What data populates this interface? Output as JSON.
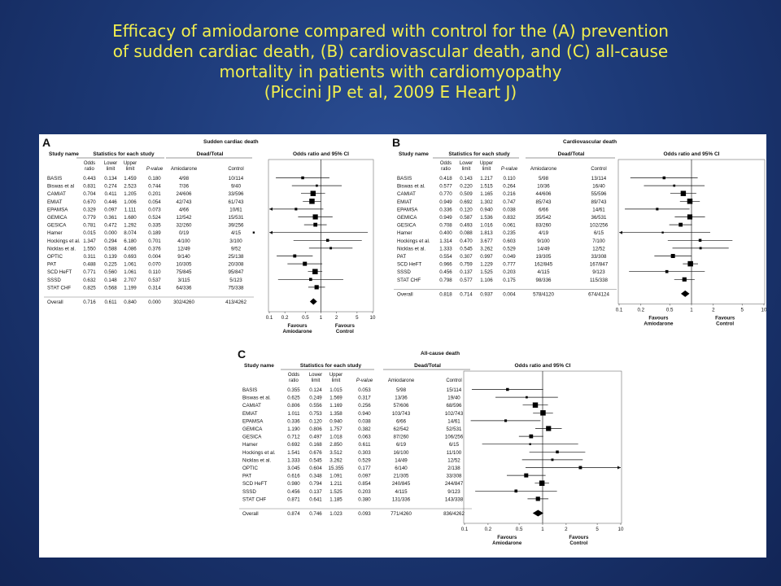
{
  "slide": {
    "title_lines": [
      "Efficacy of amiodarone compared with control for the (A) prevention",
      "of sudden cardiac death, (B) cardiovascular death, and (C) all-cause",
      "mortality in patients with cardiomyopathy",
      "(Piccini JP et al, 2009 E Heart J)"
    ],
    "accent_color": "#f2ef4f",
    "background_color": "#1d3a78"
  },
  "chart_data": [
    {
      "type": "forest",
      "panel_letter": "A",
      "title": "Sudden cardiac death",
      "headers": {
        "study": "Study name",
        "stats": "Statistics for each study",
        "events": "Dead/Total",
        "plot": "Odds ratio and 95% CI"
      },
      "subheaders": {
        "or": [
          "Odds",
          "ratio"
        ],
        "lower": [
          "Lower",
          "limit"
        ],
        "upper": [
          "Upper",
          "limit"
        ],
        "p": "P-value",
        "treat": "Amiodarone",
        "control": "Control"
      },
      "studies": [
        {
          "name": "BASIS",
          "or": "0.443",
          "lower": "0.134",
          "upper": "1.459",
          "p": "0.180",
          "treat": "4/98",
          "control": "10/114"
        },
        {
          "name": "Biswas et al",
          "or": "0.831",
          "lower": "0.274",
          "upper": "2.523",
          "p": "0.744",
          "treat": "7/36",
          "control": "9/40"
        },
        {
          "name": "CAMIAT",
          "or": "0.704",
          "lower": "0.411",
          "upper": "1.205",
          "p": "0.201",
          "treat": "24/606",
          "control": "33/596"
        },
        {
          "name": "EMIAT",
          "or": "0.670",
          "lower": "0.446",
          "upper": "1.006",
          "p": "0.054",
          "treat": "42/743",
          "control": "61/743"
        },
        {
          "name": "EPAMSA",
          "or": "0.329",
          "lower": "0.097",
          "upper": "1.111",
          "p": "0.073",
          "treat": "4/66",
          "control": "10/61"
        },
        {
          "name": "GEMICA",
          "or": "0.779",
          "lower": "0.361",
          "upper": "1.680",
          "p": "0.524",
          "treat": "12/542",
          "control": "15/531"
        },
        {
          "name": "GESICA",
          "or": "0.781",
          "lower": "0.472",
          "upper": "1.292",
          "p": "0.335",
          "treat": "32/260",
          "control": "39/256"
        },
        {
          "name": "Hamer",
          "or": "0.015",
          "lower": "0.000",
          "upper": "8.074",
          "p": "0.189",
          "treat": "0/19",
          "control": "4/15"
        },
        {
          "name": "Hockings et al.",
          "or": "1.347",
          "lower": "0.294",
          "upper": "6.180",
          "p": "0.701",
          "treat": "4/100",
          "control": "3/100"
        },
        {
          "name": "Nicklas et al.",
          "or": "1.550",
          "lower": "0.588",
          "upper": "4.086",
          "p": "0.376",
          "treat": "12/49",
          "control": "9/52"
        },
        {
          "name": "OPTIC",
          "or": "0.311",
          "lower": "0.139",
          "upper": "0.693",
          "p": "0.004",
          "treat": "9/140",
          "control": "25/138"
        },
        {
          "name": "PAT",
          "or": "0.488",
          "lower": "0.225",
          "upper": "1.061",
          "p": "0.070",
          "treat": "10/305",
          "control": "20/308"
        },
        {
          "name": "SCD HeFT",
          "or": "0.771",
          "lower": "0.560",
          "upper": "1.061",
          "p": "0.110",
          "treat": "75/845",
          "control": "95/847"
        },
        {
          "name": "SSSD",
          "or": "0.632",
          "lower": "0.148",
          "upper": "2.707",
          "p": "0.537",
          "treat": "3/115",
          "control": "5/123"
        },
        {
          "name": "STAT CHF",
          "or": "0.825",
          "lower": "0.568",
          "upper": "1.199",
          "p": "0.314",
          "treat": "64/336",
          "control": "75/338"
        }
      ],
      "overall": {
        "name": "Overall",
        "or": "0.716",
        "lower": "0.611",
        "upper": "0.840",
        "p": "0.000",
        "treat": "302/4260",
        "control": "413/4262"
      },
      "x_scale": "log",
      "x_ticks": [
        {
          "value": 0.1,
          "label": "0.1"
        },
        {
          "value": 0.2,
          "label": "0.2"
        },
        {
          "value": 0.5,
          "label": "0.5"
        },
        {
          "value": 1,
          "label": "1"
        },
        {
          "value": 2,
          "label": "2"
        },
        {
          "value": 5,
          "label": "5"
        },
        {
          "value": 10,
          "label": "10"
        }
      ],
      "favours_left": [
        "Favours",
        "Amiodarone"
      ],
      "favours_right": [
        "Favours",
        "Control"
      ]
    },
    {
      "type": "forest",
      "panel_letter": "B",
      "title": "Cardiovascular death",
      "headers": {
        "study": "Study name",
        "stats": "Statistics for each study",
        "events": "Dead/Total",
        "plot": "Odds ratio and 95% CI"
      },
      "subheaders": {
        "or": [
          "Odds",
          "ratio"
        ],
        "lower": [
          "Lower",
          "limit"
        ],
        "upper": [
          "Upper",
          "limit"
        ],
        "p": "P-value",
        "treat": "Amiodarone",
        "control": "Control"
      },
      "studies": [
        {
          "name": "BASIS",
          "or": "0.418",
          "lower": "0.143",
          "upper": "1.217",
          "p": "0.110",
          "treat": "5/98",
          "control": "13/114"
        },
        {
          "name": "Biswas et al.",
          "or": "0.577",
          "lower": "0.220",
          "upper": "1.515",
          "p": "0.264",
          "treat": "10/36",
          "control": "16/40"
        },
        {
          "name": "CAMIAT",
          "or": "0.770",
          "lower": "0.509",
          "upper": "1.165",
          "p": "0.216",
          "treat": "44/606",
          "control": "55/596"
        },
        {
          "name": "EMIAT",
          "or": "0.949",
          "lower": "0.692",
          "upper": "1.302",
          "p": "0.747",
          "treat": "85/743",
          "control": "89/743"
        },
        {
          "name": "EPAMSA",
          "or": "0.336",
          "lower": "0.120",
          "upper": "0.940",
          "p": "0.038",
          "treat": "6/66",
          "control": "14/61"
        },
        {
          "name": "GEMICA",
          "or": "0.949",
          "lower": "0.587",
          "upper": "1.536",
          "p": "0.832",
          "treat": "35/542",
          "control": "36/531"
        },
        {
          "name": "GESICA",
          "or": "0.708",
          "lower": "0.493",
          "upper": "1.016",
          "p": "0.061",
          "treat": "83/260",
          "control": "102/256"
        },
        {
          "name": "Hamer",
          "or": "0.400",
          "lower": "0.088",
          "upper": "1.813",
          "p": "0.235",
          "treat": "4/19",
          "control": "6/15"
        },
        {
          "name": "Hockings et al.",
          "or": "1.314",
          "lower": "0.470",
          "upper": "3.677",
          "p": "0.603",
          "treat": "9/100",
          "control": "7/100"
        },
        {
          "name": "Nicklas et al.",
          "or": "1.333",
          "lower": "0.545",
          "upper": "3.262",
          "p": "0.529",
          "treat": "14/49",
          "control": "12/52"
        },
        {
          "name": "PAT",
          "or": "0.554",
          "lower": "0.307",
          "upper": "0.997",
          "p": "0.049",
          "treat": "19/305",
          "control": "33/308"
        },
        {
          "name": "SCD HeFT",
          "or": "0.966",
          "lower": "0.759",
          "upper": "1.229",
          "p": "0.777",
          "treat": "162/845",
          "control": "167/847"
        },
        {
          "name": "SSSD",
          "or": "0.456",
          "lower": "0.137",
          "upper": "1.525",
          "p": "0.203",
          "treat": "4/115",
          "control": "9/123"
        },
        {
          "name": "STAT CHF",
          "or": "0.798",
          "lower": "0.577",
          "upper": "1.106",
          "p": "0.175",
          "treat": "98/336",
          "control": "115/338"
        }
      ],
      "overall": {
        "name": "Overall",
        "or": "0.818",
        "lower": "0.714",
        "upper": "0.937",
        "p": "0.004",
        "treat": "578/4120",
        "control": "674/4124"
      },
      "x_scale": "log",
      "x_ticks": [
        {
          "value": 0.1,
          "label": "0.1"
        },
        {
          "value": 0.2,
          "label": "0.2"
        },
        {
          "value": 0.5,
          "label": "0.5"
        },
        {
          "value": 1,
          "label": "1"
        },
        {
          "value": 2,
          "label": "2"
        },
        {
          "value": 5,
          "label": "5"
        },
        {
          "value": 10,
          "label": "10"
        }
      ],
      "favours_left": [
        "Favours",
        "Amiodarone"
      ],
      "favours_right": [
        "Favours",
        "Control"
      ]
    },
    {
      "type": "forest",
      "panel_letter": "C",
      "title": "All-cause death",
      "headers": {
        "study": "Study name",
        "stats": "Statistics for each study",
        "events": "Dead/Total",
        "plot": "Odds ratio and 95% CI"
      },
      "subheaders": {
        "or": [
          "Odds",
          "ratio"
        ],
        "lower": [
          "Lower",
          "limit"
        ],
        "upper": [
          "Upper",
          "limit"
        ],
        "p": "P-value",
        "treat": "Amiodarone",
        "control": "Control"
      },
      "studies": [
        {
          "name": "BASIS",
          "or": "0.355",
          "lower": "0.124",
          "upper": "1.015",
          "p": "0.053",
          "treat": "5/98",
          "control": "15/114"
        },
        {
          "name": "Biswas et al.",
          "or": "0.625",
          "lower": "0.249",
          "upper": "1.569",
          "p": "0.317",
          "treat": "13/36",
          "control": "19/40"
        },
        {
          "name": "CAMIAT",
          "or": "0.806",
          "lower": "0.556",
          "upper": "1.169",
          "p": "0.256",
          "treat": "57/606",
          "control": "68/596"
        },
        {
          "name": "EMIAT",
          "or": "1.011",
          "lower": "0.753",
          "upper": "1.358",
          "p": "0.940",
          "treat": "103/743",
          "control": "102/743"
        },
        {
          "name": "EPAMSA",
          "or": "0.336",
          "lower": "0.120",
          "upper": "0.940",
          "p": "0.038",
          "treat": "6/66",
          "control": "14/61"
        },
        {
          "name": "GEMICA",
          "or": "1.190",
          "lower": "0.806",
          "upper": "1.757",
          "p": "0.382",
          "treat": "62/542",
          "control": "52/531"
        },
        {
          "name": "GESICA",
          "or": "0.712",
          "lower": "0.497",
          "upper": "1.018",
          "p": "0.063",
          "treat": "87/260",
          "control": "106/256"
        },
        {
          "name": "Hamer",
          "or": "0.692",
          "lower": "0.168",
          "upper": "2.850",
          "p": "0.611",
          "treat": "6/19",
          "control": "6/15"
        },
        {
          "name": "Hockings et al.",
          "or": "1.541",
          "lower": "0.676",
          "upper": "3.512",
          "p": "0.303",
          "treat": "16/100",
          "control": "11/100"
        },
        {
          "name": "Nicklas et al.",
          "or": "1.333",
          "lower": "0.545",
          "upper": "3.262",
          "p": "0.529",
          "treat": "14/49",
          "control": "12/52"
        },
        {
          "name": "OPTIC",
          "or": "3.045",
          "lower": "0.604",
          "upper": "15.355",
          "p": "0.177",
          "treat": "6/140",
          "control": "2/138"
        },
        {
          "name": "PAT",
          "or": "0.616",
          "lower": "0.348",
          "upper": "1.091",
          "p": "0.097",
          "treat": "21/305",
          "control": "33/308"
        },
        {
          "name": "SCD HeFT",
          "or": "0.980",
          "lower": "0.794",
          "upper": "1.211",
          "p": "0.854",
          "treat": "240/845",
          "control": "244/847"
        },
        {
          "name": "SSSD",
          "or": "0.456",
          "lower": "0.137",
          "upper": "1.525",
          "p": "0.203",
          "treat": "4/115",
          "control": "9/123"
        },
        {
          "name": "STAT CHF",
          "or": "0.871",
          "lower": "0.641",
          "upper": "1.185",
          "p": "0.380",
          "treat": "131/336",
          "control": "143/338"
        }
      ],
      "overall": {
        "name": "Overall",
        "or": "0.874",
        "lower": "0.746",
        "upper": "1.023",
        "p": "0.093",
        "treat": "771/4260",
        "control": "836/4262"
      },
      "x_scale": "log",
      "x_ticks": [
        {
          "value": 0.1,
          "label": "0.1"
        },
        {
          "value": 0.2,
          "label": "0.2"
        },
        {
          "value": 0.5,
          "label": "0.5"
        },
        {
          "value": 1,
          "label": "1"
        },
        {
          "value": 2,
          "label": "2"
        },
        {
          "value": 5,
          "label": "5"
        },
        {
          "value": 10,
          "label": "10"
        }
      ],
      "favours_left": [
        "Favours",
        "Amiodarone"
      ],
      "favours_right": [
        "Favours",
        "Control"
      ]
    }
  ]
}
